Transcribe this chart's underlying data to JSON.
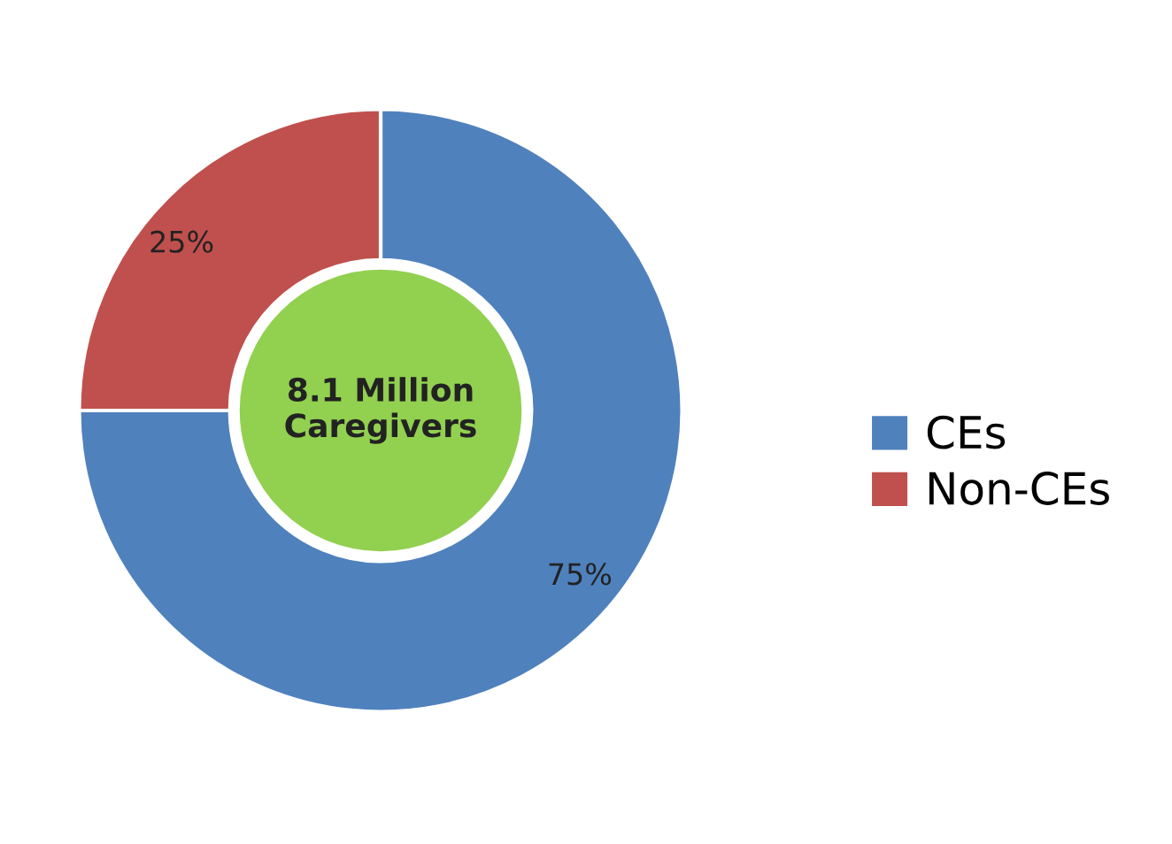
{
  "chart_data": {
    "type": "donut",
    "categories": [
      "CEs",
      "Non-CEs"
    ],
    "values": [
      75,
      25
    ],
    "value_labels": [
      "75%",
      "25%"
    ],
    "colors": [
      "#4f81bd",
      "#c0504d"
    ],
    "annotations": [
      "8.1 Million\nCaregivers"
    ],
    "legend": "right"
  }
}
